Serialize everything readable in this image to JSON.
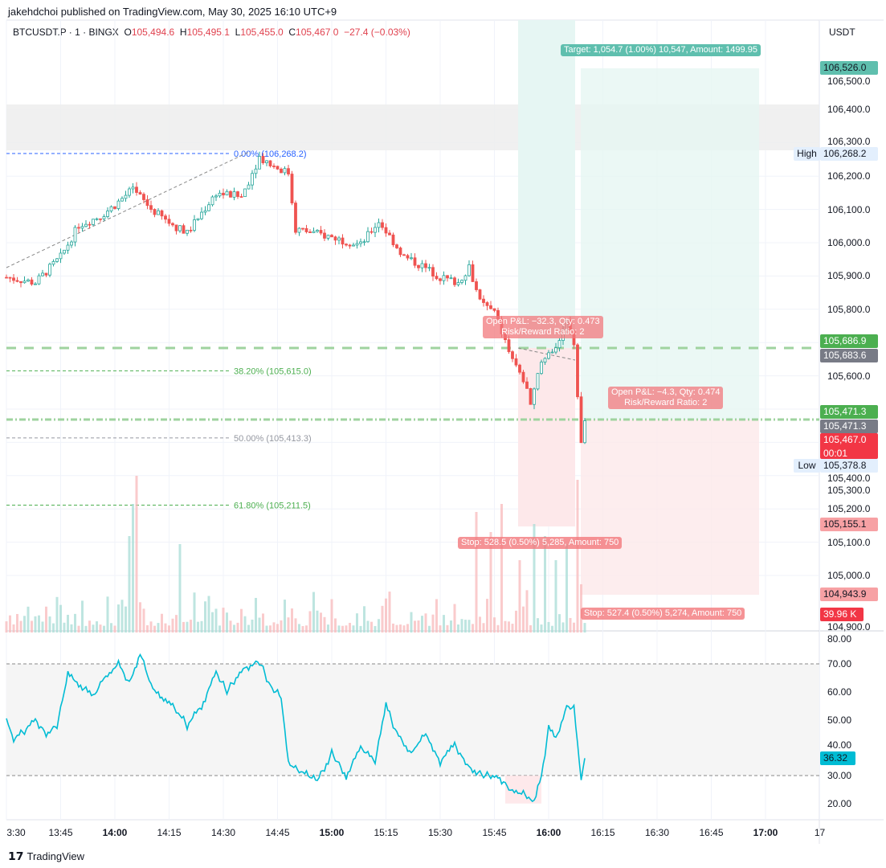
{
  "publisher": "jakehdchoi published on TradingView.com, May 30, 2025 16:10 UTC+9",
  "legend": {
    "symbol": "BTCUSDT.P · 1 · BINGX",
    "o_label": "O",
    "o": "105,494.6",
    "h_label": "H",
    "h": "105,495.1",
    "l_label": "L",
    "l": "105,455.0",
    "c_label": "C",
    "c": "105,467.0",
    "change": "−27.4 (−0.03%)"
  },
  "currency": "USDT",
  "brand": "TradingView",
  "colors": {
    "up": "#26a69a",
    "down": "#ef5350",
    "target": "#26a69a",
    "stop": "#f7a1a4",
    "fib_green": "#4caf50",
    "fib_blue": "#2962ff"
  },
  "price_ticks": [
    "106,500.0",
    "106,400.0",
    "106,300.0",
    "106,200.0",
    "106,100.0",
    "106,000.0",
    "105,900.0",
    "105,800.0",
    "105,600.0",
    "105,400.0",
    "105,300.0",
    "105,200.0",
    "105,100.0",
    "105,000.0",
    "104,900.0"
  ],
  "price_labels": [
    {
      "text": "106,526.0",
      "price": 106526,
      "bg": "#5fbfae",
      "fg": "#131722"
    },
    {
      "prefix": "High",
      "text": "106,268.2",
      "price": 106268.2,
      "bg": "#e3effd",
      "fg": "#131722"
    },
    {
      "text": "105,686.9",
      "price": 105705,
      "bg": "#4caf50",
      "fg": "#ffffff"
    },
    {
      "text": "105,683.6",
      "price": 105661,
      "bg": "#787b86",
      "fg": "#ffffff"
    },
    {
      "text": "105,471.3",
      "price": 105492,
      "bg": "#4caf50",
      "fg": "#ffffff"
    },
    {
      "text": "105,471.3",
      "price": 105450,
      "bg": "#787b86",
      "fg": "#ffffff"
    },
    {
      "text": "105,467.0",
      "sub": "00:01",
      "price": 105409,
      "bg": "#f23645",
      "fg": "#ffffff"
    },
    {
      "prefix": "Low",
      "text": "105,378.8",
      "price": 105378.8,
      "bg": "#e3effd",
      "fg": "#131722"
    },
    {
      "text": "105,155.1",
      "price": 105155.1,
      "bg": "#f7a1a4",
      "fg": "#131722"
    },
    {
      "text": "104,943.9",
      "price": 104943.9,
      "bg": "#f7a1a4",
      "fg": "#131722"
    },
    {
      "text": "39.96 K",
      "price": 104885,
      "bg": "#f23645",
      "fg": "#ffffff",
      "narrow": true
    }
  ],
  "rsi_ticks": [
    "80.00",
    "70.00",
    "60.00",
    "50.00",
    "40.00",
    "30.00",
    "20.00"
  ],
  "rsi_label": "36.32",
  "time_ticks": [
    {
      "t": "3:30",
      "b": false
    },
    {
      "t": "13:45",
      "b": false
    },
    {
      "t": "14:00",
      "b": true
    },
    {
      "t": "14:15",
      "b": false
    },
    {
      "t": "14:30",
      "b": false
    },
    {
      "t": "14:45",
      "b": false
    },
    {
      "t": "15:00",
      "b": true
    },
    {
      "t": "15:15",
      "b": false
    },
    {
      "t": "15:30",
      "b": false
    },
    {
      "t": "15:45",
      "b": false
    },
    {
      "t": "16:00",
      "b": true
    },
    {
      "t": "16:15",
      "b": false
    },
    {
      "t": "16:30",
      "b": false
    },
    {
      "t": "16:45",
      "b": false
    },
    {
      "t": "17:00",
      "b": true
    },
    {
      "t": "17",
      "b": false
    }
  ],
  "fib": [
    {
      "label": "0.00% (106,268.2)",
      "price": 106268.2,
      "color": "#2962ff"
    },
    {
      "label": "38.20% (105,615.0)",
      "price": 105615.0,
      "color": "#4caf50"
    },
    {
      "label": "50.00% (105,413.3)",
      "price": 105413.3,
      "color": "#9598a1"
    },
    {
      "label": "61.80% (105,211.5)",
      "price": 105211.5,
      "color": "#4caf50"
    }
  ],
  "positions": {
    "p1_text1": "Open P&L: −32.3, Qty: 0.473",
    "p1_text2": "Risk/Reward Ratio: 2",
    "p1_stop": "Stop: 528.5 (0.50%) 5,285, Amount: 750",
    "p2_target": "Target: 1,054.7 (1.00%) 10,547, Amount: 1499.95",
    "p2_text1": "Open P&L: −4.3, Qty: 0.474",
    "p2_text2": "Risk/Reward Ratio: 2",
    "p2_stop": "Stop: 527.4 (0.50%) 5,274, Amount: 750"
  },
  "chart_data": {
    "type": "candlestick",
    "title": "BTCUSDT.P · 1 · BINGX",
    "x_unit": "minutes since 13:30",
    "price_path": [
      [
        0,
        105896
      ],
      [
        8,
        105880
      ],
      [
        15,
        105957
      ],
      [
        20,
        106053
      ],
      [
        26,
        106080
      ],
      [
        30,
        106113
      ],
      [
        35,
        106162
      ],
      [
        40,
        106101
      ],
      [
        45,
        106060
      ],
      [
        50,
        106029
      ],
      [
        58,
        106150
      ],
      [
        65,
        106138
      ],
      [
        70,
        106258
      ],
      [
        74,
        106230
      ],
      [
        78,
        106210
      ],
      [
        80,
        106041
      ],
      [
        90,
        106017
      ],
      [
        98,
        105993
      ],
      [
        103,
        106065
      ],
      [
        110,
        105957
      ],
      [
        115,
        105930
      ],
      [
        120,
        105896
      ],
      [
        125,
        105880
      ],
      [
        128,
        105930
      ],
      [
        131,
        105820
      ],
      [
        135,
        105790
      ],
      [
        140,
        105643
      ],
      [
        143,
        105590
      ],
      [
        145,
        105522
      ],
      [
        148,
        105640
      ],
      [
        152,
        105690
      ],
      [
        155,
        105763
      ],
      [
        157,
        105700
      ],
      [
        159,
        105389
      ],
      [
        160,
        105467
      ]
    ],
    "rsi_path": [
      [
        0,
        50
      ],
      [
        2,
        43
      ],
      [
        5,
        46
      ],
      [
        8,
        50
      ],
      [
        11,
        45
      ],
      [
        14,
        48
      ],
      [
        17,
        66
      ],
      [
        20,
        63
      ],
      [
        24,
        58
      ],
      [
        27,
        65
      ],
      [
        31,
        70
      ],
      [
        34,
        63
      ],
      [
        37,
        74
      ],
      [
        40,
        62
      ],
      [
        43,
        57
      ],
      [
        46,
        55
      ],
      [
        50,
        48
      ],
      [
        54,
        55
      ],
      [
        58,
        67
      ],
      [
        61,
        60
      ],
      [
        65,
        68
      ],
      [
        70,
        71
      ],
      [
        73,
        62
      ],
      [
        76,
        58
      ],
      [
        78,
        34
      ],
      [
        82,
        31
      ],
      [
        86,
        28
      ],
      [
        90,
        38
      ],
      [
        94,
        30
      ],
      [
        98,
        40
      ],
      [
        102,
        35
      ],
      [
        105,
        55
      ],
      [
        108,
        45
      ],
      [
        112,
        38
      ],
      [
        116,
        45
      ],
      [
        120,
        35
      ],
      [
        124,
        41
      ],
      [
        128,
        33
      ],
      [
        132,
        30
      ],
      [
        136,
        30
      ],
      [
        140,
        24
      ],
      [
        144,
        23
      ],
      [
        146,
        20
      ],
      [
        148,
        30
      ],
      [
        150,
        47
      ],
      [
        152,
        43
      ],
      [
        155,
        55
      ],
      [
        157,
        54
      ],
      [
        159,
        28
      ],
      [
        160,
        37
      ]
    ],
    "volume_spikes": [
      [
        34,
        120
      ],
      [
        36,
        195
      ],
      [
        35,
        160
      ],
      [
        48,
        110
      ],
      [
        130,
        150
      ],
      [
        134,
        125
      ],
      [
        137,
        160
      ],
      [
        142,
        90
      ],
      [
        146,
        135
      ],
      [
        149,
        120
      ],
      [
        152,
        90
      ],
      [
        155,
        110
      ],
      [
        158,
        190
      ],
      [
        159,
        60
      ]
    ],
    "ylim": [
      104850,
      106560
    ],
    "rsi_ylim": [
      15,
      85
    ]
  }
}
